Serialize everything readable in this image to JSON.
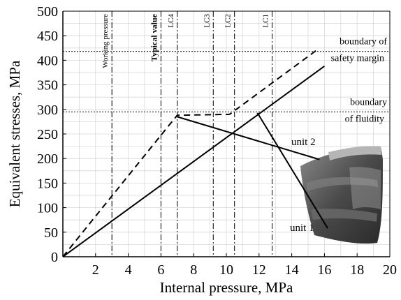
{
  "chart_data": {
    "type": "line",
    "xlabel": "Internal pressure, MPa",
    "ylabel": "Equivalent stresses, MPa",
    "xlim": [
      0,
      20
    ],
    "ylim": [
      0,
      500
    ],
    "x_ticks": [
      "0",
      "2",
      "4",
      "6",
      "8",
      "10",
      "12",
      "14",
      "16",
      "18",
      "20"
    ],
    "y_ticks": [
      "0",
      "50",
      "100",
      "150",
      "200",
      "250",
      "300",
      "350",
      "400",
      "450",
      "500"
    ],
    "grid": true,
    "series": [
      {
        "style": "solid",
        "x": [
          0,
          16
        ],
        "y": [
          0,
          388
        ]
      },
      {
        "style": "dashed",
        "x": [
          0,
          6.5,
          7.0,
          10.2,
          15.5
        ],
        "y": [
          0,
          268,
          288,
          290,
          420
        ]
      }
    ],
    "horizontal_lines": [
      {
        "y": 418,
        "label_lines": [
          "boundary of",
          "safety margin"
        ]
      },
      {
        "y": 295,
        "label_lines": [
          "boundary",
          "of fluidity"
        ]
      }
    ],
    "vertical_lines": [
      {
        "x": 3.0,
        "label": "Working pressure"
      },
      {
        "x": 6.0,
        "label": "Typical value"
      },
      {
        "x": 7.0,
        "label": "LC4"
      },
      {
        "x": 9.2,
        "label": "LC3"
      },
      {
        "x": 10.5,
        "label": "LC2"
      },
      {
        "x": 12.8,
        "label": "LC1"
      }
    ],
    "annotations": [
      {
        "text": "unit 2",
        "from": [
          7.0,
          285
        ],
        "to": [
          15.7,
          198
        ]
      },
      {
        "text": "unit 1",
        "from": [
          11.9,
          293
        ],
        "to": [
          16.2,
          58
        ]
      }
    ]
  }
}
